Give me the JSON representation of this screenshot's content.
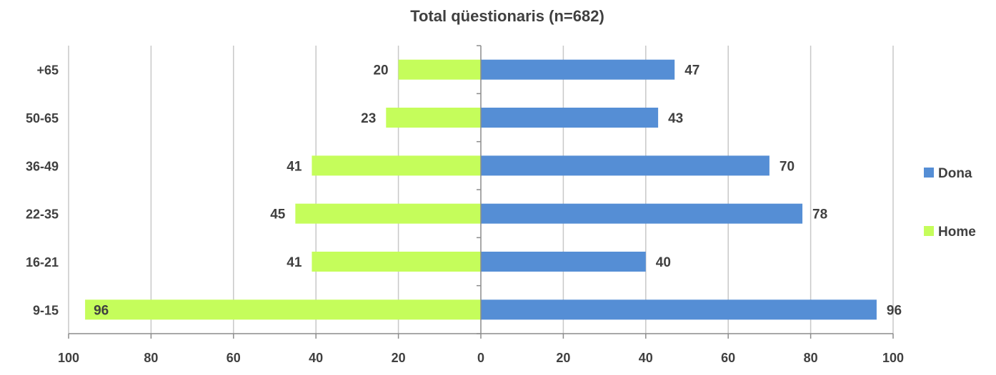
{
  "chart_data": {
    "type": "bar",
    "orientation": "horizontal",
    "layout": "population-pyramid",
    "title": "Total qüestionaris (n=682)",
    "categories": [
      "+65",
      "50-65",
      "36-49",
      "22-35",
      "16-21",
      "9-15"
    ],
    "series": [
      {
        "name": "Dona",
        "values": [
          47,
          43,
          70,
          78,
          40,
          96
        ],
        "side": "right",
        "color": "#558ed5"
      },
      {
        "name": "Home",
        "values": [
          20,
          23,
          41,
          45,
          41,
          96
        ],
        "side": "left",
        "color": "#c5fd5b"
      }
    ],
    "x_ticks": [
      "100",
      "80",
      "60",
      "40",
      "20",
      "0",
      "20",
      "40",
      "60",
      "80",
      "100"
    ],
    "xlim": [
      -100,
      100
    ],
    "grid": true,
    "legend": "right",
    "xlabel": "",
    "ylabel": ""
  }
}
